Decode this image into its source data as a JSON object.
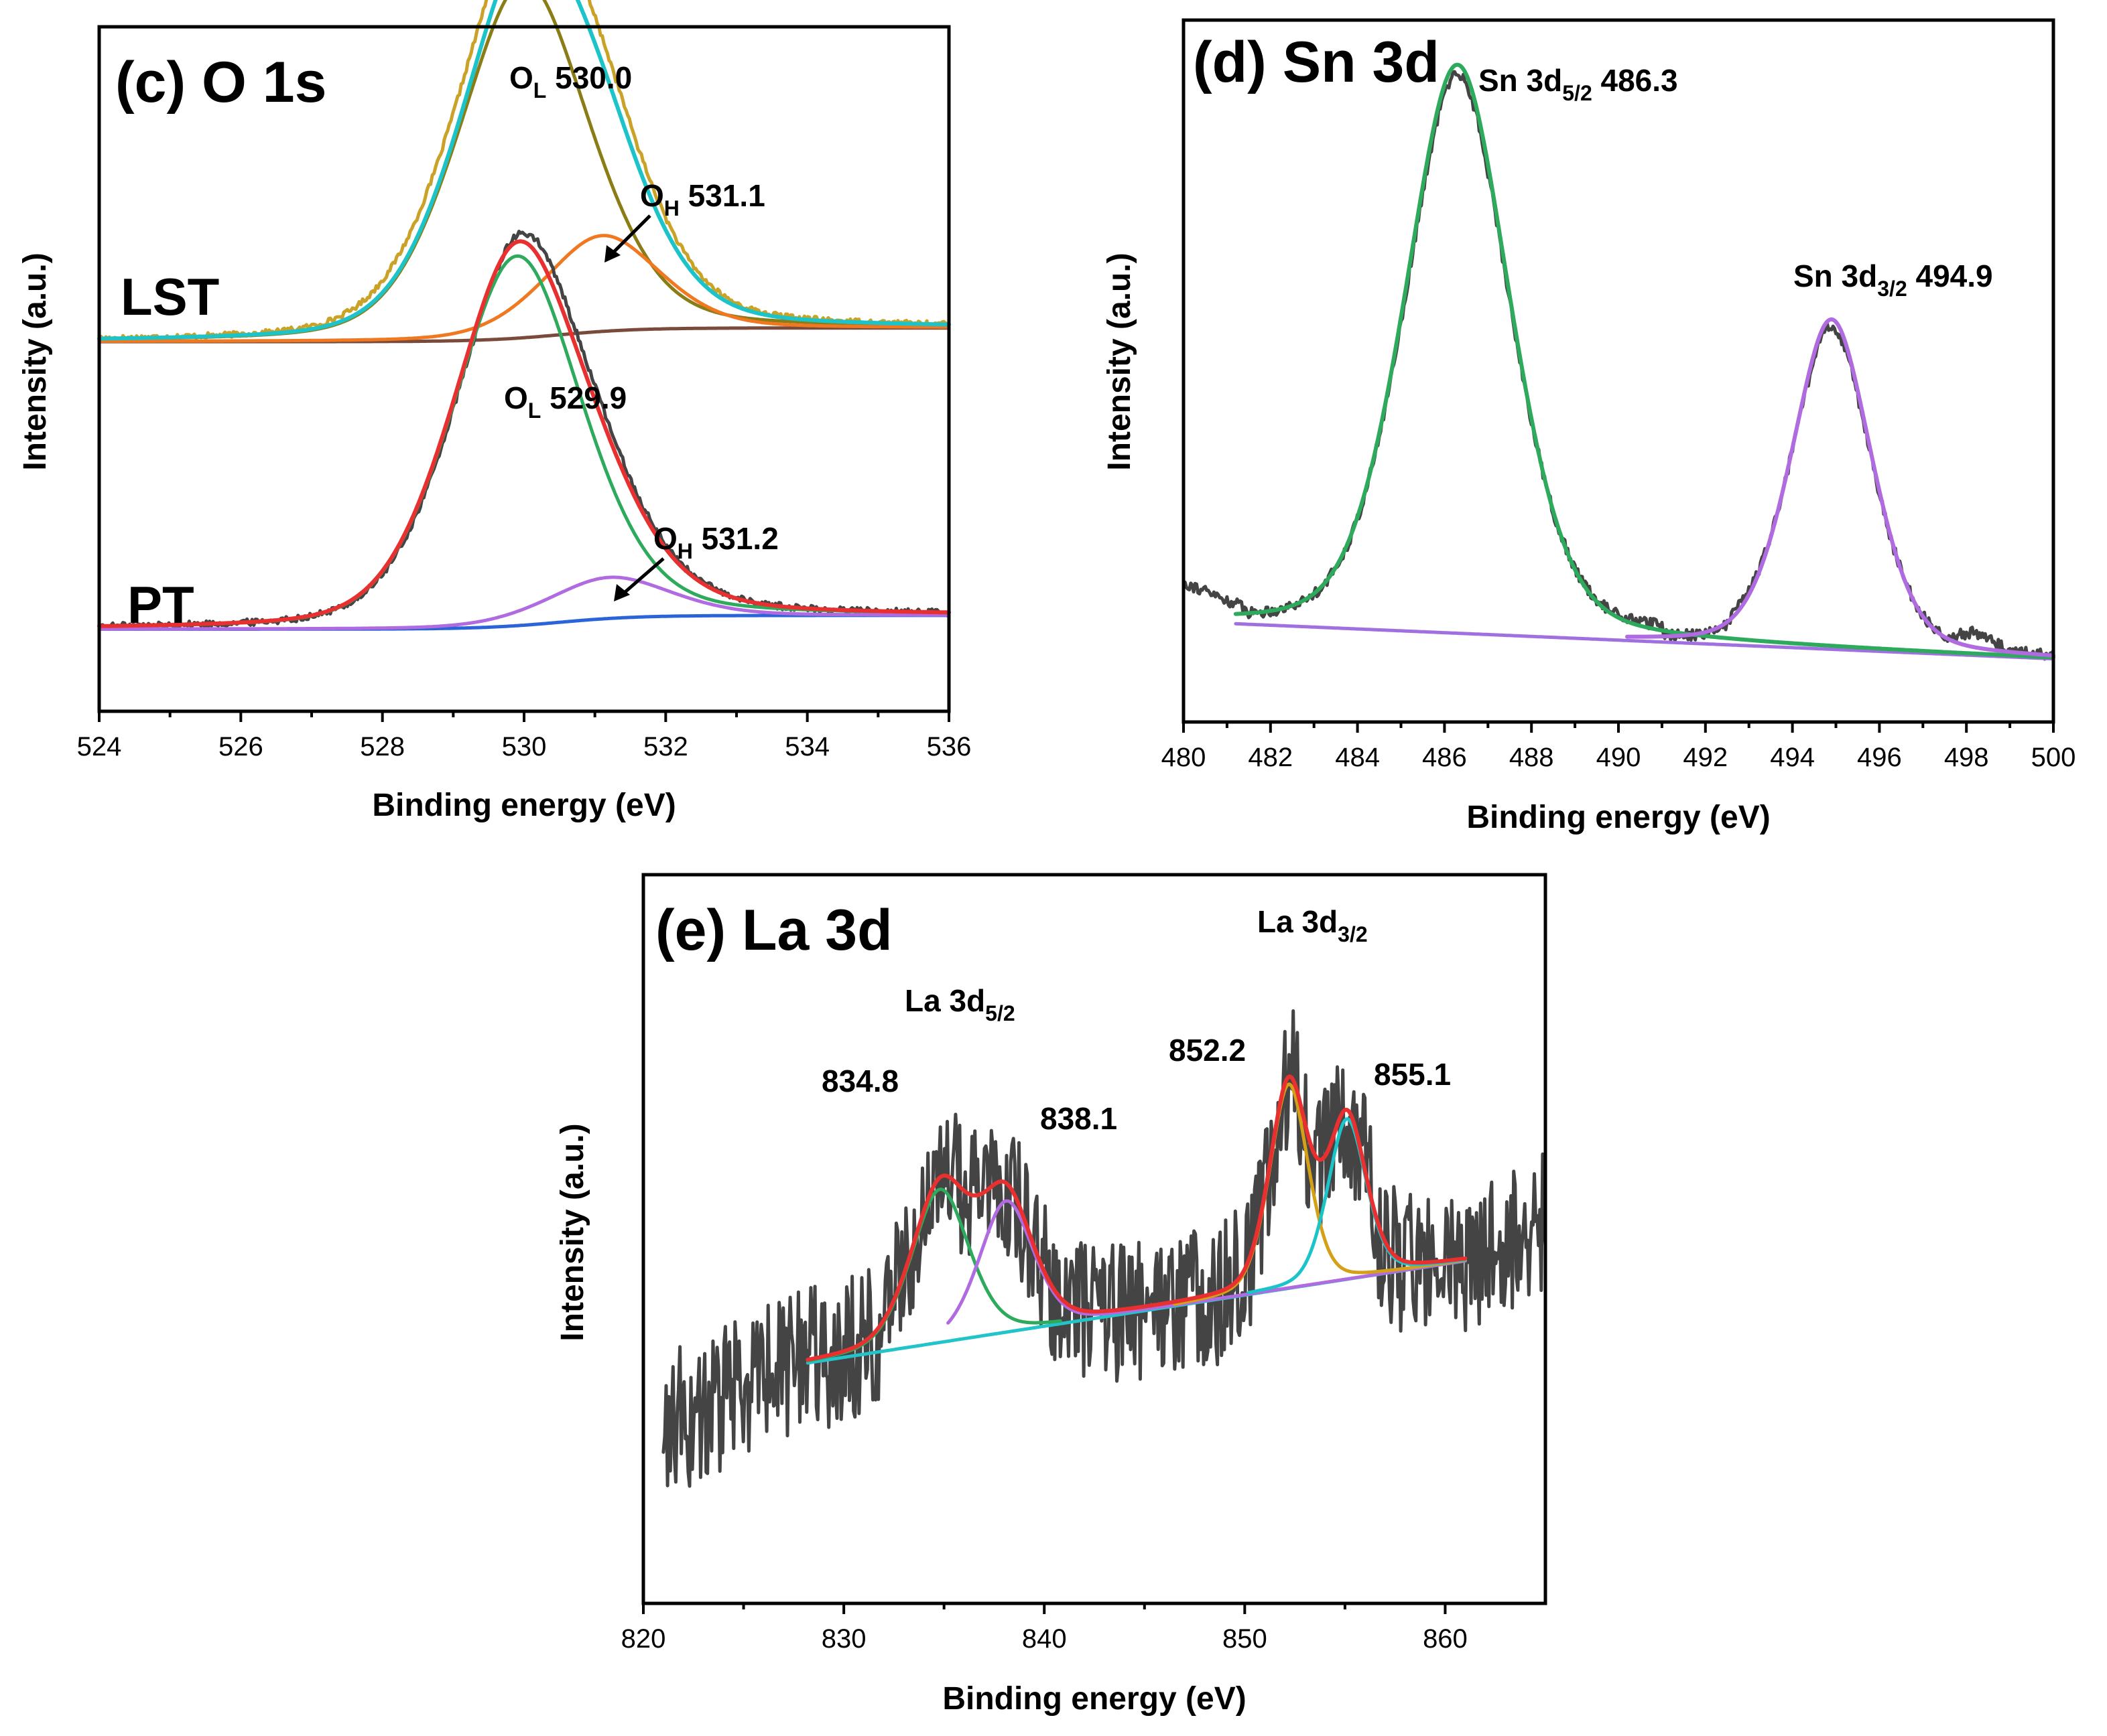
{
  "chart_data": [
    {
      "id": "c",
      "type": "line",
      "title": "(c) O 1s",
      "xlabel": "Binding energy (eV)",
      "ylabel": "Intensity (a.u.)",
      "xlim": [
        524,
        536
      ],
      "ylim": [
        0,
        1
      ],
      "xticks": [
        524,
        526,
        528,
        530,
        532,
        534,
        536
      ],
      "samples": [
        {
          "name": "LST",
          "offset": 0.54,
          "series": [
            {
              "name": "raw",
              "color": "#c9a227",
              "width": 5,
              "baseline": [
                0,
                0.02
              ],
              "peaks": [
                {
                  "c": 530.0,
                  "a": 0.56,
                  "w": 1.0
                },
                {
                  "c": 531.1,
                  "a": 0.14,
                  "w": 0.85
                }
              ],
              "noise": 0.004
            },
            {
              "name": "background",
              "color": "#7a4b3a",
              "width": 5,
              "baseline": [
                0,
                0.02
              ],
              "peaks": []
            },
            {
              "name": "O_L fit",
              "color": "#8a7d16",
              "width": 5,
              "baseline": [
                0,
                0.02
              ],
              "peaks": [
                {
                  "c": 530.0,
                  "a": 0.52,
                  "w": 0.95
                }
              ]
            },
            {
              "name": "O_H fit",
              "color": "#f07820",
              "width": 5,
              "baseline": [
                0,
                0.02
              ],
              "peaks": [
                {
                  "c": 531.1,
                  "a": 0.14,
                  "w": 0.85
                }
              ]
            },
            {
              "name": "envelope",
              "color": "#1cc4c9",
              "width": 6,
              "baseline": [
                0,
                0.02
              ],
              "peaks": [
                {
                  "c": 530.0,
                  "a": 0.52,
                  "w": 0.95
                },
                {
                  "c": 531.1,
                  "a": 0.14,
                  "w": 0.85
                }
              ]
            }
          ]
        },
        {
          "name": "PT",
          "offset": 0.12,
          "series": [
            {
              "name": "raw",
              "color": "#444444",
              "width": 5,
              "baseline": [
                0,
                0.02
              ],
              "peaks": [
                {
                  "c": 529.95,
                  "a": 0.55,
                  "w": 0.95
                },
                {
                  "c": 531.2,
                  "a": 0.06,
                  "w": 0.9
                }
              ],
              "noise": 0.005
            },
            {
              "name": "background",
              "color": "#2b63d9",
              "width": 5,
              "baseline": [
                0,
                0.02
              ],
              "peaks": []
            },
            {
              "name": "O_L fit",
              "color": "#2eaa5c",
              "width": 5,
              "baseline": [
                0,
                0.02
              ],
              "peaks": [
                {
                  "c": 529.9,
                  "a": 0.54,
                  "w": 0.95
                }
              ]
            },
            {
              "name": "O_H fit",
              "color": "#b06be0",
              "width": 5,
              "baseline": [
                0,
                0.02
              ],
              "peaks": [
                {
                  "c": 531.2,
                  "a": 0.06,
                  "w": 0.9
                }
              ]
            },
            {
              "name": "envelope",
              "color": "#e83030",
              "width": 6,
              "baseline": [
                0,
                0.02
              ],
              "peaks": [
                {
                  "c": 529.9,
                  "a": 0.54,
                  "w": 0.95
                },
                {
                  "c": 531.2,
                  "a": 0.06,
                  "w": 0.9
                }
              ]
            }
          ]
        }
      ],
      "annotations": [
        {
          "main": "O",
          "sub": "L",
          "rest": " 530.0"
        },
        {
          "main": "O",
          "sub": "H",
          "rest": " 531.1"
        },
        {
          "main": "O",
          "sub": "L",
          "rest": " 529.9"
        },
        {
          "main": "O",
          "sub": "H",
          "rest": " 531.2"
        }
      ]
    },
    {
      "id": "d",
      "type": "line",
      "title": "(d) Sn 3d",
      "xlabel": "Binding energy (eV)",
      "ylabel": "Intensity (a.u.)",
      "xlim": [
        480,
        500
      ],
      "ylim": [
        0,
        1
      ],
      "xticks": [
        480,
        482,
        484,
        486,
        488,
        490,
        492,
        494,
        496,
        498,
        500
      ],
      "series": [
        {
          "name": "raw",
          "color": "#444444",
          "width": 5,
          "peaks": [
            {
              "c": 486.3,
              "a": 0.795,
              "w": 1.25
            },
            {
              "c": 494.9,
              "a": 0.455,
              "w": 0.95
            }
          ],
          "noise": 0.008
        },
        {
          "name": "background",
          "color": "#a070e0",
          "width": 5,
          "peaks": []
        },
        {
          "name": "Sn 3d5/2 fit",
          "color": "#2eaa5c",
          "width": 6,
          "peaks": [
            {
              "c": 486.3,
              "a": 0.81,
              "w": 1.25
            }
          ]
        },
        {
          "name": "Sn 3d3/2 fit",
          "color": "#b06be0",
          "width": 6,
          "peaks": [
            {
              "c": 494.9,
              "a": 0.47,
              "w": 0.95
            }
          ]
        }
      ],
      "background_line": [
        [
          481.2,
          0.14
        ],
        [
          500,
          0.09
        ]
      ],
      "annotations": [
        {
          "main": "Sn 3d",
          "sub": "5/2",
          "rest": " 486.3"
        },
        {
          "main": "Sn 3d",
          "sub": "3/2",
          "rest": " 494.9"
        }
      ]
    },
    {
      "id": "e",
      "type": "line",
      "title": "(e) La 3d",
      "xlabel": "Binding energy (eV)",
      "ylabel": "Intensity (a.u.)",
      "xlim": [
        820,
        865
      ],
      "ylim": [
        0,
        1
      ],
      "xticks": [
        820,
        830,
        840,
        850,
        860
      ],
      "series": [
        {
          "name": "raw",
          "color": "#444444",
          "width": 5,
          "noise": 0.1
        },
        {
          "name": "background",
          "color": "#22c4c9",
          "width": 5
        },
        {
          "name": "834.8 fit",
          "color": "#2eaa5c",
          "width": 5,
          "peaks": [
            {
              "c": 834.8,
              "a": 0.21,
              "w": 1.5
            }
          ]
        },
        {
          "name": "838.1 fit",
          "color": "#b06be0",
          "width": 5,
          "peaks": [
            {
              "c": 838.1,
              "a": 0.18,
              "w": 1.4
            }
          ]
        },
        {
          "name": "852.2 fit",
          "color": "#d4a017",
          "width": 5,
          "peaks": [
            {
              "c": 852.2,
              "a": 0.28,
              "w": 1.0
            }
          ]
        },
        {
          "name": "855.1 fit",
          "color": "#1cc4c9",
          "width": 5,
          "peaks": [
            {
              "c": 855.1,
              "a": 0.22,
              "w": 1.0
            }
          ]
        },
        {
          "name": "envelope",
          "color": "#e83030",
          "width": 6,
          "peaks": [
            {
              "c": 834.8,
              "a": 0.21,
              "w": 1.5
            },
            {
              "c": 838.1,
              "a": 0.18,
              "w": 1.4
            },
            {
              "c": 852.2,
              "a": 0.28,
              "w": 1.0
            },
            {
              "c": 855.1,
              "a": 0.22,
              "w": 1.0
            }
          ]
        }
      ],
      "background_line": [
        [
          828.2,
          0.33
        ],
        [
          861,
          0.47
        ]
      ],
      "annotations": [
        {
          "main": "La 3d",
          "sub": "5/2",
          "rest": ""
        },
        {
          "main": "La 3d",
          "sub": "3/2",
          "rest": ""
        },
        {
          "main": "834.8",
          "sub": "",
          "rest": ""
        },
        {
          "main": "838.1",
          "sub": "",
          "rest": ""
        },
        {
          "main": "852.2",
          "sub": "",
          "rest": ""
        },
        {
          "main": "855.1",
          "sub": "",
          "rest": ""
        }
      ]
    }
  ]
}
